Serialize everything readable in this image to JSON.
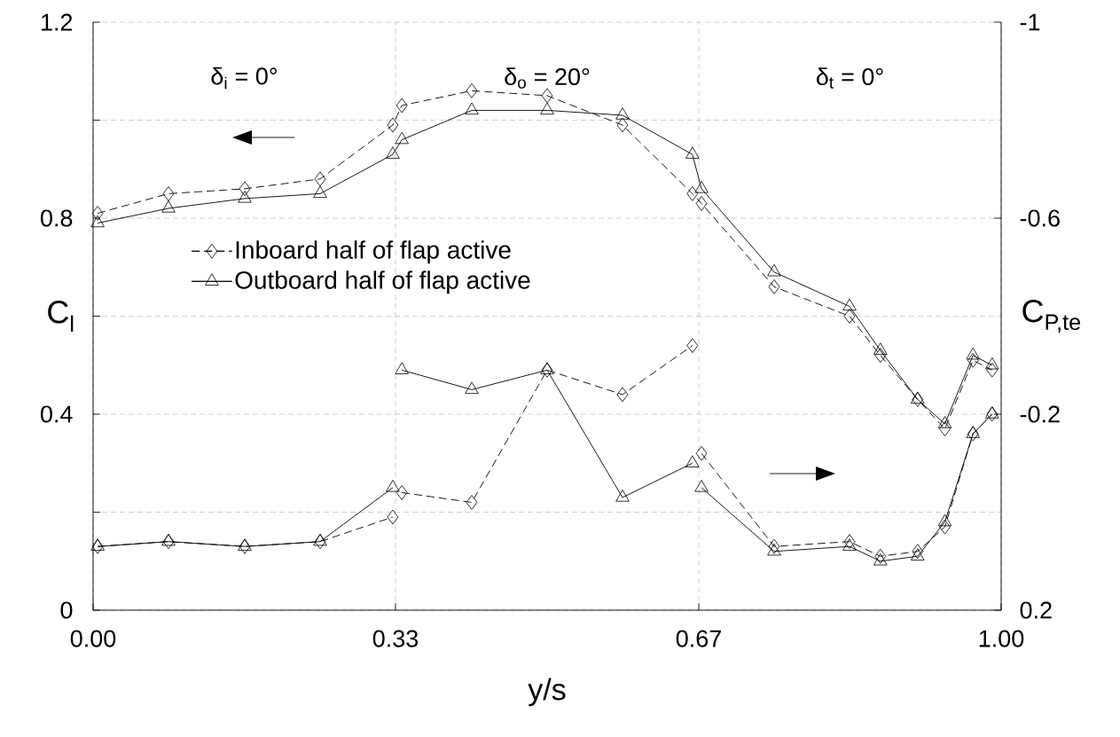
{
  "chart_data": {
    "type": "line",
    "xlabel": "y/s",
    "ylabel": "C$_{l}$",
    "y2label": "C$_{P,te}$",
    "xlim": [
      0,
      1
    ],
    "xticks": [
      {
        "value": 0,
        "label": "0.00"
      },
      {
        "value": 0.333,
        "label": "0.33"
      },
      {
        "value": 0.667,
        "label": "0.67"
      },
      {
        "value": 1,
        "label": "1.00"
      }
    ],
    "ylim": [
      0,
      1.2
    ],
    "yticks": [
      0,
      {
        "value": 0.2,
        "label": null
      },
      0.4,
      {
        "value": 0.6,
        "label": null
      },
      0.8,
      {
        "value": 1.0,
        "label": null
      },
      1.2
    ],
    "y2lim": [
      0.2,
      -1
    ],
    "y2ticks": [
      0.2,
      -0.2,
      -0.6,
      -1
    ],
    "grid": true,
    "legend": "left",
    "annotations": [
      "δ$_{i}$ = 0°",
      "δ$_{o}$ = 20°",
      "δ$_{t}$ = 0°"
    ],
    "x": [
      0.005,
      0.083,
      0.167,
      0.25,
      0.33,
      0.34,
      0.417,
      0.5,
      0.583,
      0.66,
      0.67,
      0.75,
      0.833,
      0.867,
      0.908,
      0.938,
      0.969,
      0.99
    ],
    "series": [
      {
        "name": "Inboard half of flap active",
        "color": "#000000",
        "marker": "diamond",
        "line_style": "dashed",
        "values": [
          0.81,
          0.85,
          0.86,
          0.88,
          0.99,
          1.03,
          1.06,
          1.05,
          0.99,
          0.85,
          0.83,
          0.66,
          0.6,
          0.52,
          0.43,
          0.37,
          0.51,
          0.49
        ]
      },
      {
        "name": "Outboard half of flap active",
        "color": "#000000",
        "marker": "triangle",
        "line_style": "solid",
        "values": [
          0.79,
          0.82,
          0.84,
          0.85,
          0.93,
          0.96,
          1.02,
          1.02,
          1.01,
          0.93,
          0.86,
          0.69,
          0.62,
          0.53,
          0.43,
          0.38,
          0.52,
          0.5
        ]
      },
      {
        "axis": "y2",
        "color": "#000000",
        "marker": "diamond",
        "line_style": "dashed",
        "x": [
          0.005,
          0.083,
          0.167,
          0.25,
          0.33
        ],
        "values": [
          0.07,
          0.06,
          0.07,
          0.06,
          0.01
        ]
      },
      {
        "axis": "y2",
        "color": "#000000",
        "marker": "diamond",
        "line_style": "dashed",
        "x": [
          0.34,
          0.417,
          0.5,
          0.583,
          0.66
        ],
        "values": [
          -0.04,
          -0.02,
          -0.29,
          -0.24,
          -0.34
        ]
      },
      {
        "axis": "y2",
        "color": "#000000",
        "marker": "diamond",
        "line_style": "dashed",
        "x": [
          0.67,
          0.75,
          0.833,
          0.867,
          0.908,
          0.938,
          0.969,
          0.99
        ],
        "values": [
          -0.12,
          0.07,
          0.06,
          0.09,
          0.08,
          0.03,
          -0.16,
          -0.2
        ]
      },
      {
        "axis": "y2",
        "color": "#000000",
        "marker": "triangle",
        "line_style": "solid",
        "x": [
          0.005,
          0.083,
          0.167,
          0.25,
          0.33
        ],
        "values": [
          0.07,
          0.06,
          0.07,
          0.06,
          -0.05
        ]
      },
      {
        "axis": "y2",
        "color": "#000000",
        "marker": "triangle",
        "line_style": "solid",
        "x": [
          0.34,
          0.417,
          0.5,
          0.583,
          0.66
        ],
        "values": [
          -0.29,
          -0.25,
          -0.29,
          -0.03,
          -0.1
        ]
      },
      {
        "axis": "y2",
        "color": "#000000",
        "marker": "triangle",
        "line_style": "solid",
        "x": [
          0.67,
          0.75,
          0.833,
          0.867,
          0.908,
          0.938,
          0.969,
          0.99
        ],
        "values": [
          -0.05,
          0.08,
          0.07,
          0.1,
          0.09,
          0.02,
          -0.16,
          -0.2
        ]
      }
    ]
  }
}
